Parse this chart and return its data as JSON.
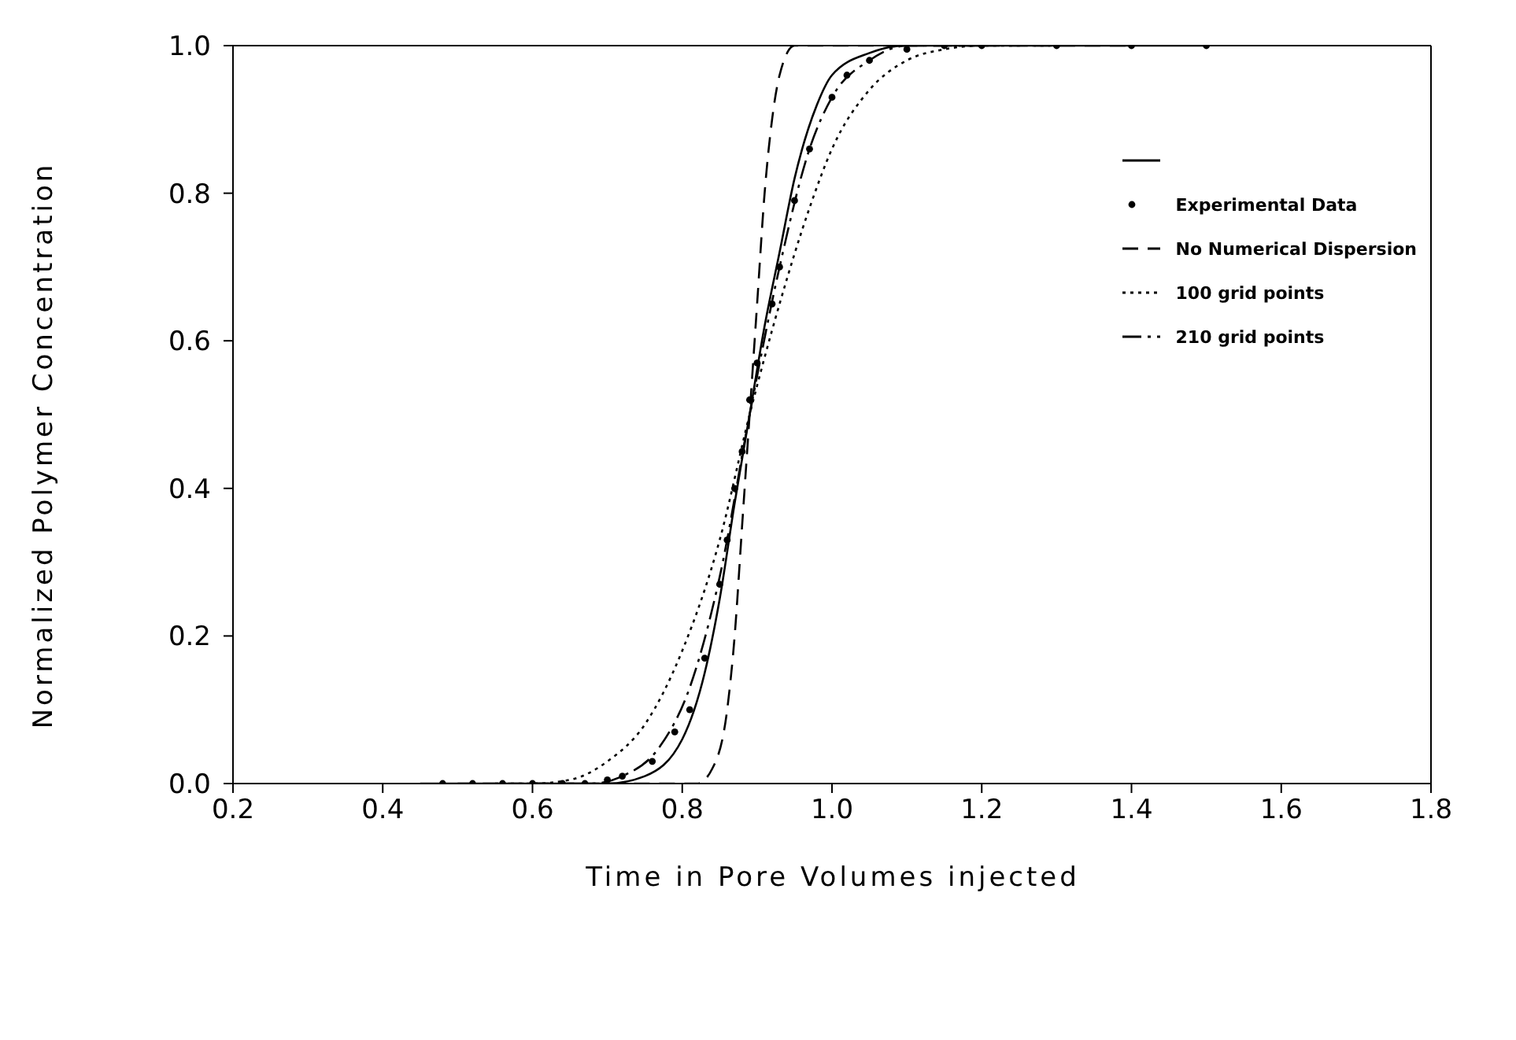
{
  "chart_data": {
    "type": "line",
    "xlabel": "Time in Pore Volumes injected",
    "ylabel": "Normalized Polymer Concentration",
    "xlim": [
      0.2,
      1.8
    ],
    "ylim": [
      0,
      1.0
    ],
    "xticks": [
      0.2,
      0.4,
      0.6,
      0.8,
      {
        "value": 1,
        "label": "1.0"
      },
      1.2,
      1.4,
      1.6,
      1.8
    ],
    "yticks": [
      {
        "value": 0,
        "label": "0.0"
      },
      0.2,
      0.4,
      0.6,
      0.8,
      {
        "value": 1,
        "label": "1.0"
      }
    ],
    "grid": false,
    "legend": "right",
    "marker": "none",
    "series": [
      {
        "color": "#000000",
        "line_style": "solid",
        "x": [
          0.45,
          0.6,
          0.7,
          0.75,
          0.8,
          0.83,
          0.85,
          0.87,
          0.89,
          0.91,
          0.93,
          0.95,
          0.98,
          1.0,
          1.05,
          1.1,
          1.5
        ],
        "values": [
          0,
          0,
          0,
          0.01,
          0.06,
          0.15,
          0.25,
          0.38,
          0.5,
          0.62,
          0.72,
          0.82,
          0.92,
          0.96,
          0.99,
          1.0,
          1.0
        ]
      },
      {
        "type": "scatter",
        "name": "Experimental Data",
        "color": "#000000",
        "marker": "circle",
        "x": [
          0.48,
          0.52,
          0.56,
          0.6,
          0.64,
          0.67,
          0.7,
          0.72,
          0.76,
          0.79,
          0.81,
          0.83,
          0.85,
          0.86,
          0.87,
          0.88,
          0.89,
          0.9,
          0.92,
          0.93,
          0.95,
          0.97,
          1.0,
          1.02,
          1.05,
          1.1,
          1.15,
          1.2,
          1.3,
          1.4,
          1.5
        ],
        "values": [
          0,
          0,
          0,
          0,
          0,
          0,
          0.005,
          0.01,
          0.03,
          0.07,
          0.1,
          0.17,
          0.27,
          0.33,
          0.4,
          0.45,
          0.52,
          0.57,
          0.65,
          0.7,
          0.79,
          0.86,
          0.93,
          0.96,
          0.98,
          0.995,
          1.0,
          1.0,
          1.0,
          1.0,
          1.0
        ]
      },
      {
        "name": "No Numerical Dispersion",
        "color": "#000000",
        "line_style": "dashed",
        "x": [
          0.5,
          0.7,
          0.82,
          0.84,
          0.86,
          0.87,
          0.88,
          0.89,
          0.9,
          0.91,
          0.92,
          0.93,
          0.95,
          1.4
        ],
        "values": [
          0,
          0,
          0,
          0.02,
          0.1,
          0.2,
          0.35,
          0.5,
          0.65,
          0.8,
          0.9,
          0.96,
          1.0,
          1.0
        ]
      },
      {
        "name": "100 grid points",
        "color": "#000000",
        "line_style": "dotted",
        "x": [
          0.55,
          0.6,
          0.65,
          0.7,
          0.75,
          0.8,
          0.85,
          0.89,
          0.93,
          0.97,
          1.0,
          1.05,
          1.1,
          1.15,
          1.2,
          1.3
        ],
        "values": [
          0,
          0,
          0.005,
          0.03,
          0.08,
          0.18,
          0.33,
          0.5,
          0.65,
          0.78,
          0.86,
          0.94,
          0.98,
          0.995,
          1.0,
          1.0
        ]
      },
      {
        "name": "210 grid points",
        "color": "#000000",
        "line_style": "dashdot",
        "x": [
          0.6,
          0.68,
          0.72,
          0.77,
          0.81,
          0.85,
          0.89,
          0.93,
          0.97,
          1.0,
          1.05,
          1.1,
          1.2
        ],
        "values": [
          0,
          0,
          0.01,
          0.05,
          0.13,
          0.28,
          0.5,
          0.7,
          0.86,
          0.93,
          0.98,
          1.0,
          1.0
        ]
      }
    ]
  }
}
